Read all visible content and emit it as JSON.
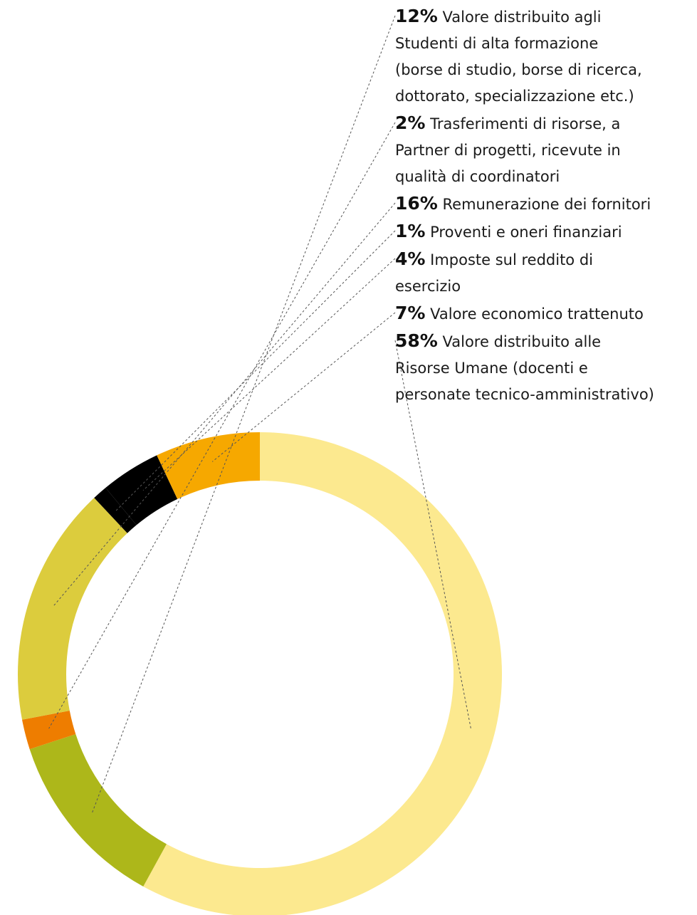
{
  "chart_data": {
    "type": "pie",
    "donut": true,
    "segments": [
      {
        "percent_label": "58%",
        "value": 58,
        "label": "Valore distribuito alle\nRisorse Umane (docenti e\npersonate tecnico-amministrativo)",
        "color": "#FCE98F"
      },
      {
        "percent_label": "12%",
        "value": 12,
        "label": "Valore distribuito agli\nStudenti di alta formazione\n(borse di studio, borse di ricerca,\ndottorato, specializzazione etc.)",
        "color": "#ADB71A"
      },
      {
        "percent_label": "2%",
        "value": 2,
        "label": "Trasferimenti di risorse, a\nPartner di progetti, ricevute in\nqualità di coordinatori",
        "color": "#EE7D00"
      },
      {
        "percent_label": "16%",
        "value": 16,
        "label": "Remunerazione dei fornitori",
        "color": "#DCCC3D"
      },
      {
        "percent_label": "1%",
        "value": 1,
        "label": "Proventi e oneri finanziari",
        "color": "#000000"
      },
      {
        "percent_label": "4%",
        "value": 4,
        "label": "Imposte sul reddito di\nesercizio",
        "color": "#000000"
      },
      {
        "percent_label": "7%",
        "value": 7,
        "label": "Valore economico trattenuto",
        "color": "#F6A800"
      }
    ],
    "legend_order": [
      1,
      2,
      3,
      4,
      5,
      6,
      0
    ],
    "legend_position": "top-right",
    "leader_lines": "dashed"
  }
}
